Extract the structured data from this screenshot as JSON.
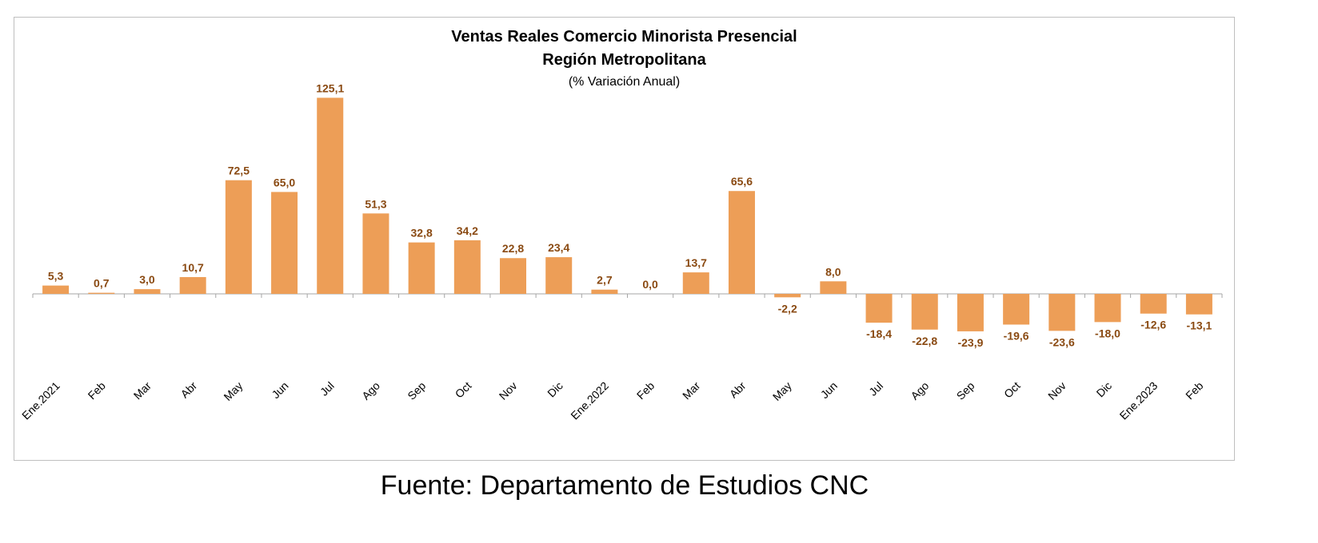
{
  "chart_data": {
    "type": "bar",
    "title": "Ventas Reales Comercio Minorista Presencial",
    "subtitle_line": "Región Metropolitana",
    "subtitle": "(% Variación Anual)",
    "categories": [
      "Ene.2021",
      "Feb",
      "Mar",
      "Abr",
      "May",
      "Jun",
      "Jul",
      "Ago",
      "Sep",
      "Oct",
      "Nov",
      "Dic",
      "Ene.2022",
      "Feb",
      "Mar",
      "Abr",
      "May",
      "Jun",
      "Jul",
      "Ago",
      "Sep",
      "Oct",
      "Nov",
      "Dic",
      "Ene.2023",
      "Feb"
    ],
    "values": [
      5.3,
      0.7,
      3.0,
      10.7,
      72.5,
      65.0,
      125.1,
      51.3,
      32.8,
      34.2,
      22.8,
      23.4,
      2.7,
      0.0,
      13.7,
      65.6,
      -2.2,
      8.0,
      -18.4,
      -22.8,
      -23.9,
      -19.6,
      -23.6,
      -18.0,
      -12.6,
      -13.1
    ],
    "value_labels": [
      "5,3",
      "0,7",
      "3,0",
      "10,7",
      "72,5",
      "65,0",
      "125,1",
      "51,3",
      "32,8",
      "34,2",
      "22,8",
      "23,4",
      "2,7",
      "0,0",
      "13,7",
      "65,6",
      "-2,2",
      "8,0",
      "-18,4",
      "-22,8",
      "-23,9",
      "-19,6",
      "-23,6",
      "-18,0",
      "-12,6",
      "-13,1"
    ],
    "bar_color": "#ED9E57",
    "label_color": "#8A4A12",
    "grid": false,
    "legend": "none"
  },
  "source": "Fuente: Departamento de Estudios CNC"
}
